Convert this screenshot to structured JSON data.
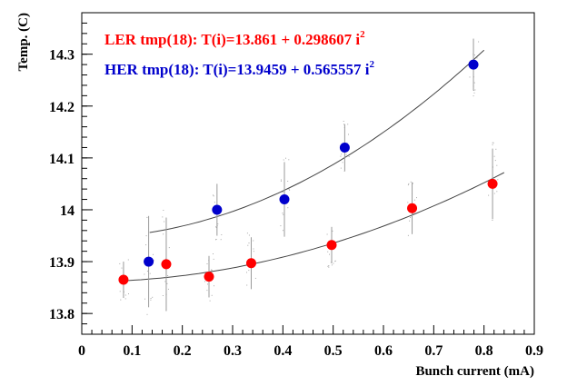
{
  "chart_data": {
    "type": "scatter",
    "xlabel": "Bunch current (mA)",
    "ylabel": "Temp. (C)",
    "xlim": [
      0,
      0.9
    ],
    "ylim": [
      13.76,
      14.38
    ],
    "x_ticks": [
      "0",
      "0.1",
      "0.2",
      "0.3",
      "0.4",
      "0.5",
      "0.6",
      "0.7",
      "0.8",
      "0.9"
    ],
    "y_ticks": [
      "13.8",
      "13.9",
      "14",
      "14.1",
      "14.2",
      "14.3"
    ],
    "x_tick_values": [
      0,
      0.1,
      0.2,
      0.3,
      0.4,
      0.5,
      0.6,
      0.7,
      0.8,
      0.9
    ],
    "y_tick_values": [
      13.8,
      13.9,
      14.0,
      14.1,
      14.2,
      14.3
    ],
    "grid": false,
    "series": [
      {
        "name": "LER tmp(18)",
        "color": "#ff0000",
        "fit_label_main": "LER tmp(18): T(i)=13.861 + 0.298607 i",
        "fit_label_exp": "2",
        "fit": {
          "a": 13.861,
          "b": 0.298607,
          "x_range": [
            0.08,
            0.84
          ]
        },
        "points": [
          {
            "x": 0.083,
            "y": 13.865,
            "err": 0.035
          },
          {
            "x": 0.168,
            "y": 13.895,
            "err": 0.09
          },
          {
            "x": 0.253,
            "y": 13.871,
            "err": 0.04
          },
          {
            "x": 0.337,
            "y": 13.897,
            "err": 0.05
          },
          {
            "x": 0.497,
            "y": 13.932,
            "err": 0.035
          },
          {
            "x": 0.657,
            "y": 14.003,
            "err": 0.05
          },
          {
            "x": 0.817,
            "y": 14.05,
            "err": 0.068
          }
        ]
      },
      {
        "name": "HER tmp(18)",
        "color": "#0000cc",
        "fit_label_main": "HER tmp(18): T(i)=13.9459 + 0.565557 i",
        "fit_label_exp": "2",
        "fit": {
          "a": 13.9459,
          "b": 0.565557,
          "x_range": [
            0.135,
            0.8
          ]
        },
        "points": [
          {
            "x": 0.133,
            "y": 13.9,
            "err": 0.088
          },
          {
            "x": 0.269,
            "y": 14.0,
            "err": 0.05
          },
          {
            "x": 0.403,
            "y": 14.02,
            "err": 0.072
          },
          {
            "x": 0.523,
            "y": 14.12,
            "err": 0.045
          },
          {
            "x": 0.779,
            "y": 14.28,
            "err": 0.05
          }
        ]
      }
    ]
  }
}
